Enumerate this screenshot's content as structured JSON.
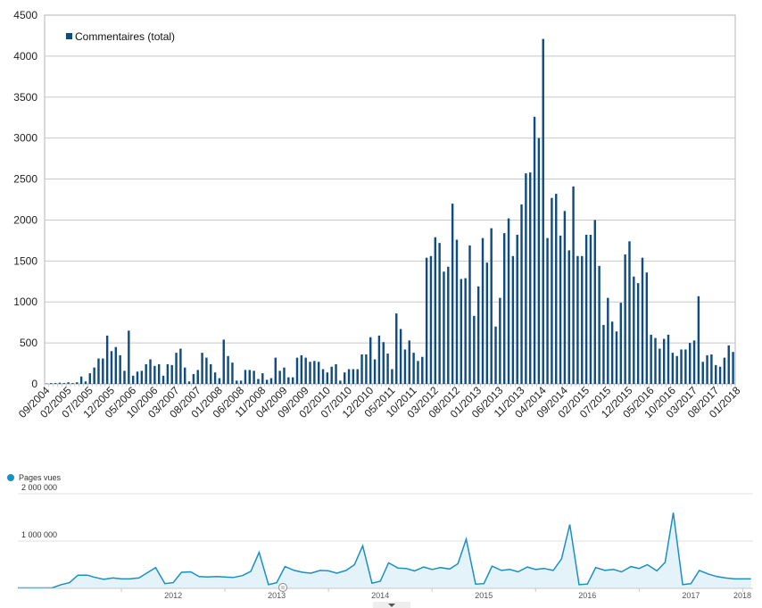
{
  "chart_data": [
    {
      "type": "bar",
      "title": "",
      "legend": {
        "label": "Commentaires (total)",
        "placement": "top-left"
      },
      "color": "#0f4c81",
      "ylim": [
        0,
        4500
      ],
      "yticks": [
        0,
        500,
        1000,
        1500,
        2000,
        2500,
        3000,
        3500,
        4000,
        4500
      ],
      "grid": true,
      "start_month": "2004-09",
      "xtick_labels": [
        "09/2004",
        "02/2005",
        "07/2005",
        "12/2005",
        "05/2006",
        "10/2006",
        "03/2007",
        "08/2007",
        "01/2008",
        "06/2008",
        "11/2008",
        "04/2009",
        "09/2009",
        "02/2010",
        "07/2010",
        "12/2010",
        "05/2011",
        "10/2011",
        "03/2012",
        "08/2012",
        "01/2013",
        "06/2013",
        "11/2013",
        "04/2014",
        "09/2014",
        "02/2015",
        "07/2015",
        "12/2015",
        "05/2016",
        "10/2016",
        "03/2017",
        "08/2017",
        "01/2018"
      ],
      "series": [
        {
          "name": "Commentaires (total)",
          "values": [
            5,
            10,
            10,
            15,
            10,
            20,
            10,
            20,
            90,
            30,
            130,
            200,
            310,
            310,
            590,
            400,
            450,
            350,
            160,
            650,
            100,
            150,
            160,
            240,
            300,
            220,
            240,
            100,
            240,
            230,
            380,
            430,
            200,
            30,
            120,
            170,
            380,
            320,
            240,
            140,
            70,
            540,
            340,
            260,
            40,
            40,
            170,
            170,
            160,
            60,
            130,
            50,
            70,
            320,
            160,
            200,
            80,
            80,
            320,
            350,
            320,
            270,
            280,
            270,
            180,
            140,
            210,
            240,
            40,
            140,
            180,
            180,
            180,
            360,
            360,
            570,
            300,
            590,
            510,
            370,
            180,
            860,
            670,
            420,
            530,
            380,
            280,
            330,
            1540,
            1560,
            1790,
            1720,
            1370,
            1430,
            2200,
            1760,
            1280,
            1290,
            1690,
            830,
            1190,
            1780,
            1480,
            1900,
            700,
            1050,
            1840,
            2020,
            1560,
            1820,
            2190,
            2570,
            2580,
            3260,
            3000,
            4210,
            1780,
            2270,
            2320,
            1810,
            2110,
            1630,
            2410,
            1560,
            1560,
            1820,
            1820,
            2000,
            1440,
            720,
            1050,
            760,
            640,
            990,
            1580,
            1740,
            1310,
            1230,
            1540,
            1360,
            600,
            560,
            430,
            550,
            600,
            380,
            340,
            420,
            420,
            500,
            530,
            1070,
            270,
            350,
            360,
            230,
            210,
            320,
            470,
            390
          ]
        }
      ]
    },
    {
      "type": "area",
      "title": "",
      "legend": {
        "label": "Pages vues",
        "placement": "top-left"
      },
      "color": "#1b8fc3",
      "fill": "#e4f2f9",
      "ylim": [
        0,
        2000000
      ],
      "ytick_labels": [
        "2 000 000",
        "1 000 000"
      ],
      "yticks": [
        2000000,
        1000000
      ],
      "grid": true,
      "x_labels": [
        "2012",
        "2013",
        "2014",
        "2015",
        "2016",
        "2017",
        "2018"
      ],
      "x_label_years": [
        2012,
        2013,
        2014,
        2015,
        2016,
        2017,
        2018
      ],
      "x_start": 2011.0,
      "x_end": 2018.1,
      "series": [
        {
          "name": "Pages vues",
          "x": [
            2011.0,
            2011.08,
            2011.17,
            2011.25,
            2011.33,
            2011.42,
            2011.5,
            2011.58,
            2011.67,
            2011.75,
            2011.83,
            2011.92,
            2012.0,
            2012.08,
            2012.17,
            2012.25,
            2012.33,
            2012.42,
            2012.5,
            2012.58,
            2012.67,
            2012.75,
            2012.83,
            2012.92,
            2013.0,
            2013.08,
            2013.17,
            2013.25,
            2013.33,
            2013.42,
            2013.5,
            2013.58,
            2013.67,
            2013.75,
            2013.83,
            2013.92,
            2014.0,
            2014.08,
            2014.17,
            2014.25,
            2014.33,
            2014.42,
            2014.5,
            2014.58,
            2014.67,
            2014.75,
            2014.83,
            2014.92,
            2015.0,
            2015.08,
            2015.17,
            2015.25,
            2015.33,
            2015.42,
            2015.5,
            2015.58,
            2015.67,
            2015.75,
            2015.83,
            2015.92,
            2016.0,
            2016.08,
            2016.17,
            2016.25,
            2016.33,
            2016.42,
            2016.5,
            2016.58,
            2016.67,
            2016.75,
            2016.83,
            2016.92,
            2017.0,
            2017.08,
            2017.17,
            2017.25,
            2017.33,
            2017.42,
            2017.5,
            2017.58,
            2017.67,
            2017.75,
            2017.83,
            2017.92,
            2018.0,
            2018.08
          ],
          "values": [
            10000,
            10000,
            10000,
            10000,
            10000,
            80000,
            120000,
            280000,
            280000,
            230000,
            190000,
            220000,
            200000,
            200000,
            220000,
            330000,
            440000,
            100000,
            120000,
            340000,
            350000,
            250000,
            240000,
            250000,
            240000,
            230000,
            270000,
            360000,
            760000,
            80000,
            120000,
            460000,
            380000,
            340000,
            320000,
            380000,
            370000,
            320000,
            380000,
            500000,
            900000,
            110000,
            150000,
            540000,
            430000,
            420000,
            370000,
            450000,
            400000,
            440000,
            410000,
            520000,
            1040000,
            90000,
            100000,
            470000,
            380000,
            400000,
            350000,
            450000,
            400000,
            420000,
            380000,
            620000,
            1350000,
            80000,
            90000,
            440000,
            380000,
            400000,
            350000,
            460000,
            420000,
            500000,
            370000,
            550000,
            1600000,
            80000,
            100000,
            380000,
            300000,
            250000,
            220000,
            200000,
            200000,
            200000
          ]
        }
      ]
    }
  ],
  "ui": {
    "scroll_arrow": "chevron-down-icon",
    "marker_icon": "comment-bubble-icon"
  }
}
